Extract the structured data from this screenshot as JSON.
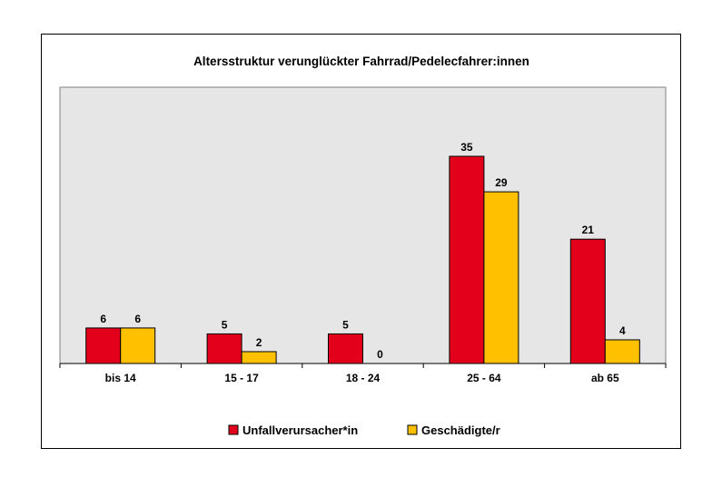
{
  "chart_data": {
    "type": "bar",
    "title": "Altersstruktur verunglückter Fahrrad/Pedelecfahrer:innen",
    "xlabel": "",
    "ylabel": "",
    "categories": [
      "bis 14",
      "15 - 17",
      "18 - 24",
      "25 - 64",
      "ab 65"
    ],
    "series": [
      {
        "name": "Unfallverursacher*in",
        "values": [
          6,
          5,
          5,
          35,
          21
        ],
        "color": "#e3001b"
      },
      {
        "name": "Geschädigte/r",
        "values": [
          6,
          2,
          0,
          29,
          4
        ],
        "color": "#ffc000"
      }
    ],
    "ylim": [
      0,
      35
    ],
    "grid": false,
    "legend": "bottom",
    "plot_background": "#e6e6e6"
  }
}
